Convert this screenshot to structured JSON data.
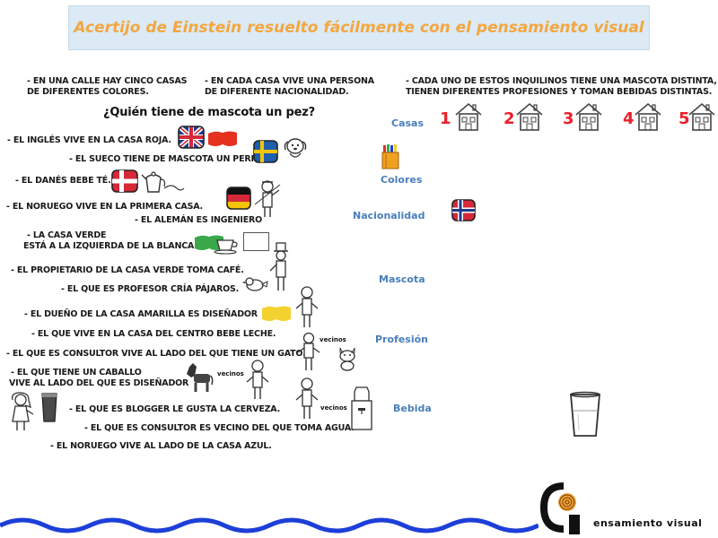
{
  "title": "Acertijo de Einstein resuelto fácilmente con el pensamiento visual",
  "intro": {
    "houses_line1": "- En una calle hay cinco casas",
    "houses_line2": "de diferentes colores.",
    "people_line1": "- En cada casa vive una persona",
    "people_line2": "de diferente nacionalidad.",
    "tenants_line1": "- Cada uno de estos inquilinos tiene una mascota distinta,",
    "tenants_line2": "tienen diferentes profesiones y toman bebidas distintas."
  },
  "question": "¿Quién tiene de mascota un pez?",
  "clues": [
    "- El inglés vive en la casa roja.",
    "- El sueco tiene de mascota un perro.",
    "- El danés bebe té.",
    "- El noruego vive en la primera casa.",
    "- El alemán es ingeniero",
    "- La casa verde",
    "está a la izquierda de la blanca.",
    "- El propietario de la casa verde toma café.",
    "- El que es profesor cría pájaros.",
    "- El dueño de la casa amarilla es diseñador",
    "- El que vive en la casa del centro bebe leche.",
    "- El que es consultor vive al lado del que tiene un gato.",
    "- El que tiene un caballo",
    "vive al lado del que es diseñador",
    "- El que es blogger le gusta la cerveza.",
    "- El que es consultor es vecino del que toma agua.",
    "- El noruego vive al lado de la casa azul."
  ],
  "neighbors_label": "vecinos",
  "categories": [
    "Casas",
    "Colores",
    "Nacionalidad",
    "Mascota",
    "Profesión",
    "Bebida"
  ],
  "house_numbers": [
    "1",
    "2",
    "3",
    "4",
    "5"
  ],
  "brand": "ensamiento visual",
  "colors": {
    "title_bg": "#dbeaf4",
    "title_text": "#f4a640",
    "category": "#4a7ebb",
    "number": "#e8202a",
    "wave": "#1d3fd8",
    "red_swatch": "#e6311f",
    "green_swatch": "#3aa84a",
    "yellow_swatch": "#f3d230"
  },
  "icons": [
    "union-jack-flag-icon",
    "sweden-flag-icon",
    "denmark-flag-icon",
    "germany-flag-icon",
    "norway-flag-icon",
    "dog-icon",
    "teapot-icon",
    "cup-icon",
    "horse-icon",
    "cat-icon",
    "bird-icon",
    "beer-glass-icon",
    "water-dispenser-icon",
    "milk-glass-icon",
    "house-icon",
    "crayons-icon",
    "person-icon",
    "logo-icon"
  ]
}
